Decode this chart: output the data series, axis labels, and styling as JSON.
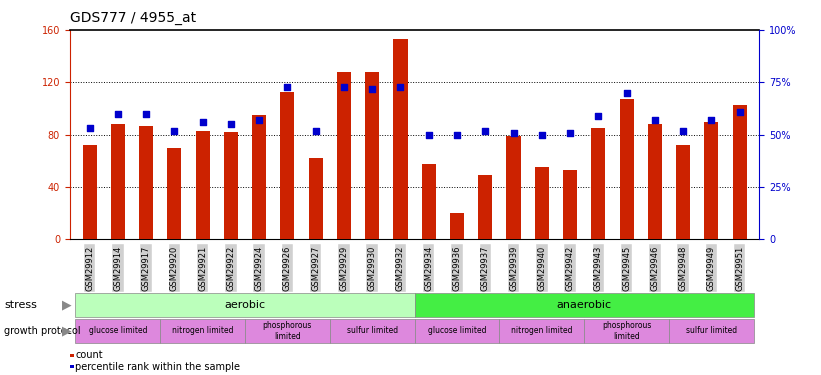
{
  "title": "GDS777 / 4955_at",
  "samples": [
    "GSM29912",
    "GSM29914",
    "GSM29917",
    "GSM29920",
    "GSM29921",
    "GSM29922",
    "GSM29924",
    "GSM29926",
    "GSM29927",
    "GSM29929",
    "GSM29930",
    "GSM29932",
    "GSM29934",
    "GSM29936",
    "GSM29937",
    "GSM29939",
    "GSM29940",
    "GSM29942",
    "GSM29943",
    "GSM29945",
    "GSM29946",
    "GSM29948",
    "GSM29949",
    "GSM29951"
  ],
  "counts": [
    72,
    88,
    87,
    70,
    83,
    82,
    95,
    113,
    62,
    128,
    128,
    153,
    58,
    20,
    49,
    79,
    55,
    53,
    85,
    107,
    88,
    72,
    90,
    103
  ],
  "percentile": [
    53,
    60,
    60,
    52,
    56,
    55,
    57,
    73,
    52,
    73,
    72,
    73,
    50,
    50,
    52,
    51,
    50,
    51,
    59,
    70,
    57,
    52,
    57,
    61
  ],
  "ylim_left": [
    0,
    160
  ],
  "ylim_right": [
    0,
    100
  ],
  "yticks_left": [
    0,
    40,
    80,
    120,
    160
  ],
  "yticks_right": [
    0,
    25,
    50,
    75,
    100
  ],
  "ytick_labels_right": [
    "0",
    "25%",
    "50%",
    "75%",
    "100%"
  ],
  "bar_color": "#cc2200",
  "dot_color": "#0000cc",
  "stress_aerobic_color": "#bbffbb",
  "stress_anaerobic_color": "#44ee44",
  "growth_color": "#dd88dd",
  "xtick_bg": "#d0d0d0",
  "stress_label": "stress",
  "growth_label": "growth protocol",
  "stress_aerobic_label": "aerobic",
  "stress_anaerobic_label": "anaerobic",
  "growth_groups": [
    {
      "label": "glucose limited",
      "start": 0,
      "end": 3
    },
    {
      "label": "nitrogen limited",
      "start": 3,
      "end": 6
    },
    {
      "label": "phosphorous\nlimited",
      "start": 6,
      "end": 9
    },
    {
      "label": "sulfur limited",
      "start": 9,
      "end": 12
    },
    {
      "label": "glucose limited",
      "start": 12,
      "end": 15
    },
    {
      "label": "nitrogen limited",
      "start": 15,
      "end": 18
    },
    {
      "label": "phosphorous\nlimited",
      "start": 18,
      "end": 21
    },
    {
      "label": "sulfur limited",
      "start": 21,
      "end": 24
    }
  ],
  "legend_count_label": "count",
  "legend_percentile_label": "percentile rank within the sample",
  "bar_width": 0.5
}
